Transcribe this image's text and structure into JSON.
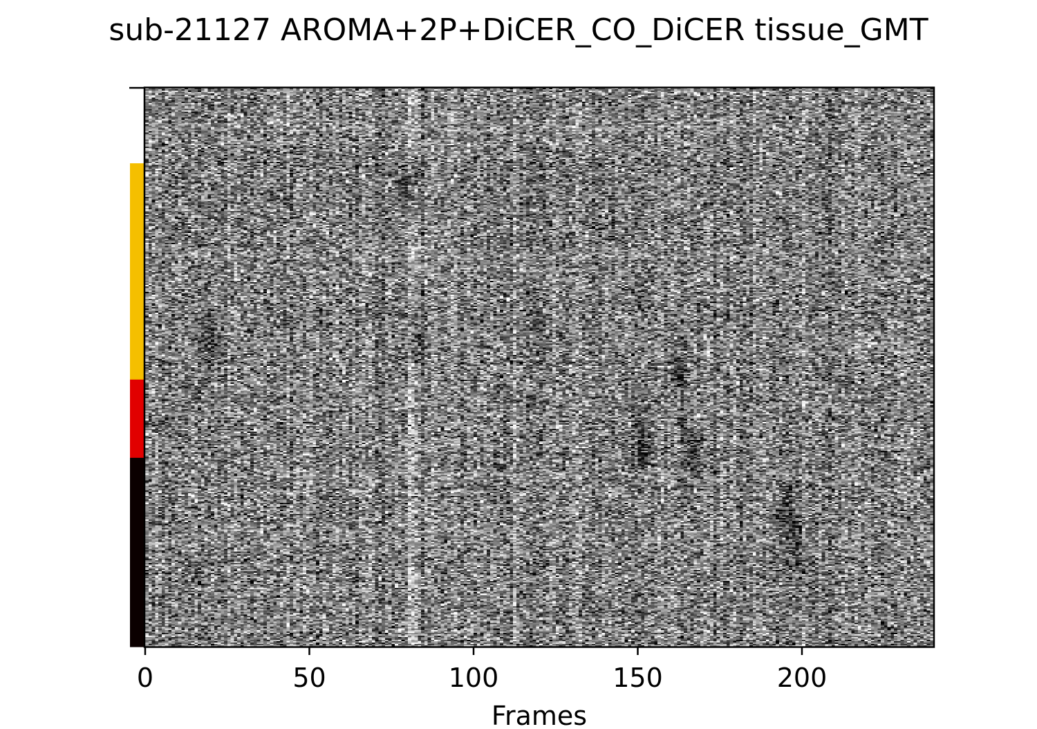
{
  "chart_data": {
    "type": "heatmap",
    "title": "sub-21127 AROMA+2P+DiCER_CO_DiCER tissue_GMT",
    "xlabel": "Frames",
    "ylabel": "",
    "xlim": [
      0,
      240
    ],
    "x_ticks": [
      0,
      50,
      100,
      150,
      200
    ],
    "x_tick_labels": [
      "0",
      "50",
      "100",
      "150",
      "200"
    ],
    "colormap": "gray",
    "n_frames": 240,
    "tissue_bar": {
      "segments": [
        {
          "label": "",
          "fraction": 0.135,
          "color": "#ffffff"
        },
        {
          "label": "",
          "fraction": 0.387,
          "color": "#f5bf00"
        },
        {
          "label": "",
          "fraction": 0.14,
          "color": "#e10000"
        },
        {
          "label": "",
          "fraction": 0.338,
          "color": "#0b0000"
        }
      ]
    },
    "vertical_bright_bands": [
      80,
      81,
      82,
      112,
      131,
      200
    ],
    "dark_patch_frames": [
      19,
      80,
      82,
      150,
      162,
      165,
      195,
      198
    ]
  }
}
